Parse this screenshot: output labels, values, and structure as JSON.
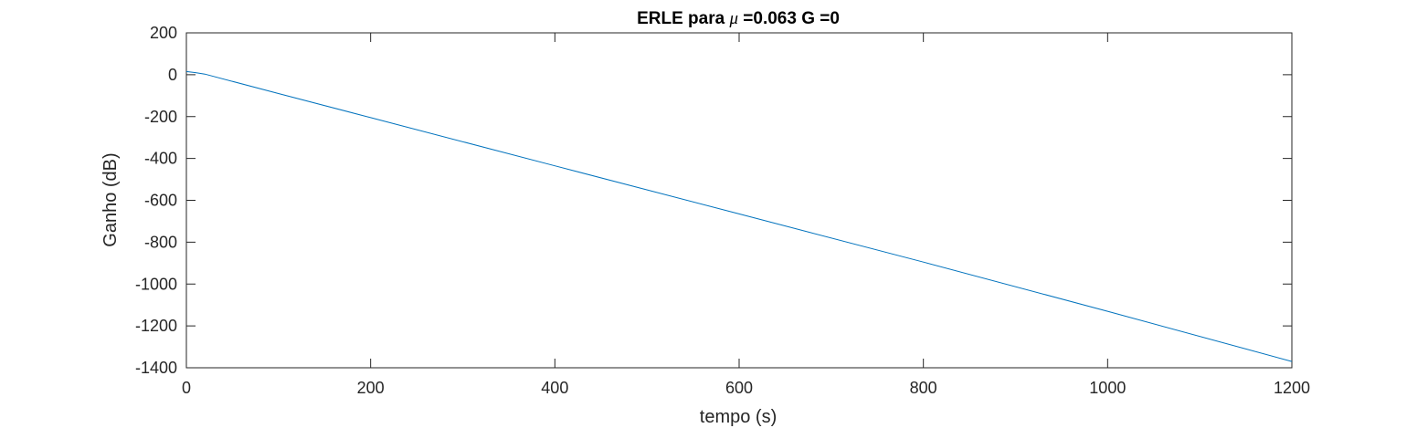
{
  "chart_data": {
    "type": "line",
    "title": {
      "prefix": "ERLE para ",
      "symbol": "μ",
      "suffix": " =0.063 G =0"
    },
    "xlabel": "tempo (s)",
    "ylabel": "Ganho (dB)",
    "xlim": [
      0,
      1200
    ],
    "ylim": [
      -1400,
      200
    ],
    "xticks": [
      0,
      200,
      400,
      600,
      800,
      1000,
      1200
    ],
    "yticks": [
      200,
      0,
      -200,
      -400,
      -600,
      -800,
      -1000,
      -1200,
      -1400
    ],
    "grid": false,
    "series": [
      {
        "color": "#0072BD",
        "x": [
          0,
          10,
          20,
          100,
          200,
          400,
          600,
          800,
          1000,
          1200
        ],
        "y": [
          15,
          10,
          3,
          -90,
          -205,
          -435,
          -665,
          -895,
          -1130,
          -1370
        ]
      }
    ]
  }
}
